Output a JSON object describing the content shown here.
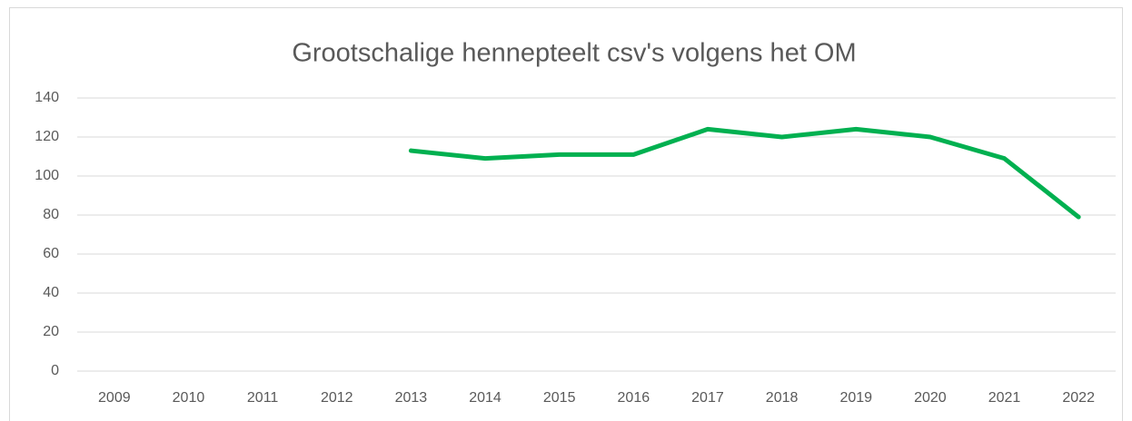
{
  "chart_data": {
    "type": "line",
    "title": "Grootschalige hennepteelt csv's volgens het OM",
    "categories": [
      "2009",
      "2010",
      "2011",
      "2012",
      "2013",
      "2014",
      "2015",
      "2016",
      "2017",
      "2018",
      "2019",
      "2020",
      "2021",
      "2022"
    ],
    "series": [
      {
        "name": "Grootschalige hennepteelt csv's",
        "color": "#00b050",
        "values": [
          null,
          null,
          null,
          null,
          113,
          109,
          111,
          111,
          124,
          120,
          124,
          120,
          109,
          79
        ]
      }
    ],
    "ylim": [
      0,
      140
    ],
    "yticks": [
      0,
      20,
      40,
      60,
      80,
      100,
      120,
      140
    ],
    "grid": true
  }
}
